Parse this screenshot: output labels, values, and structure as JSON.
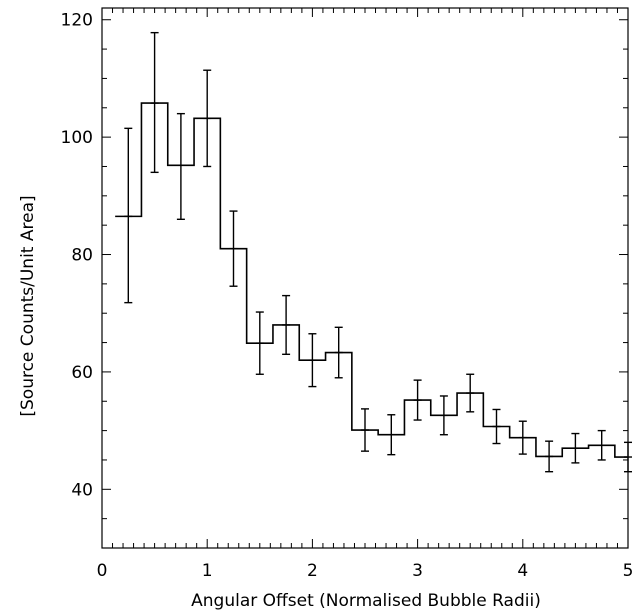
{
  "chart_data": {
    "type": "histogram-step",
    "title": "",
    "xlabel": "Angular Offset (Normalised Bubble Radii)",
    "ylabel": "[Source Counts/Unit Area]",
    "xlim": [
      0,
      5
    ],
    "ylim": [
      30,
      122
    ],
    "xticks": [
      0,
      1,
      2,
      3,
      4,
      5
    ],
    "yticks": [
      40,
      60,
      80,
      100,
      120
    ],
    "bin_width": 0.25,
    "bins": [
      {
        "x": 0.25,
        "y": 86.5,
        "err_low": 71.8,
        "err_high": 101.5
      },
      {
        "x": 0.5,
        "y": 105.8,
        "err_low": 94.0,
        "err_high": 117.8
      },
      {
        "x": 0.75,
        "y": 95.2,
        "err_low": 86.0,
        "err_high": 104.0
      },
      {
        "x": 1.0,
        "y": 103.2,
        "err_low": 95.0,
        "err_high": 111.4
      },
      {
        "x": 1.25,
        "y": 81.0,
        "err_low": 74.6,
        "err_high": 87.4
      },
      {
        "x": 1.5,
        "y": 64.9,
        "err_low": 59.6,
        "err_high": 70.2
      },
      {
        "x": 1.75,
        "y": 68.0,
        "err_low": 63.0,
        "err_high": 73.0
      },
      {
        "x": 2.0,
        "y": 62.0,
        "err_low": 57.5,
        "err_high": 66.5
      },
      {
        "x": 2.25,
        "y": 63.3,
        "err_low": 59.0,
        "err_high": 67.6
      },
      {
        "x": 2.5,
        "y": 50.1,
        "err_low": 46.5,
        "err_high": 53.7
      },
      {
        "x": 2.75,
        "y": 49.3,
        "err_low": 45.9,
        "err_high": 52.7
      },
      {
        "x": 3.0,
        "y": 55.2,
        "err_low": 51.8,
        "err_high": 58.6
      },
      {
        "x": 3.25,
        "y": 52.6,
        "err_low": 49.3,
        "err_high": 55.9
      },
      {
        "x": 3.5,
        "y": 56.4,
        "err_low": 53.2,
        "err_high": 59.6
      },
      {
        "x": 3.75,
        "y": 50.7,
        "err_low": 47.8,
        "err_high": 53.6
      },
      {
        "x": 4.0,
        "y": 48.8,
        "err_low": 46.0,
        "err_high": 51.6
      },
      {
        "x": 4.25,
        "y": 45.6,
        "err_low": 43.0,
        "err_high": 48.2
      },
      {
        "x": 4.5,
        "y": 47.0,
        "err_low": 44.5,
        "err_high": 49.5
      },
      {
        "x": 4.75,
        "y": 47.5,
        "err_low": 45.0,
        "err_high": 50.0
      },
      {
        "x": 5.0,
        "y": 45.5,
        "err_low": 43.0,
        "err_high": 48.0
      }
    ],
    "grid": false,
    "legend": "none"
  }
}
